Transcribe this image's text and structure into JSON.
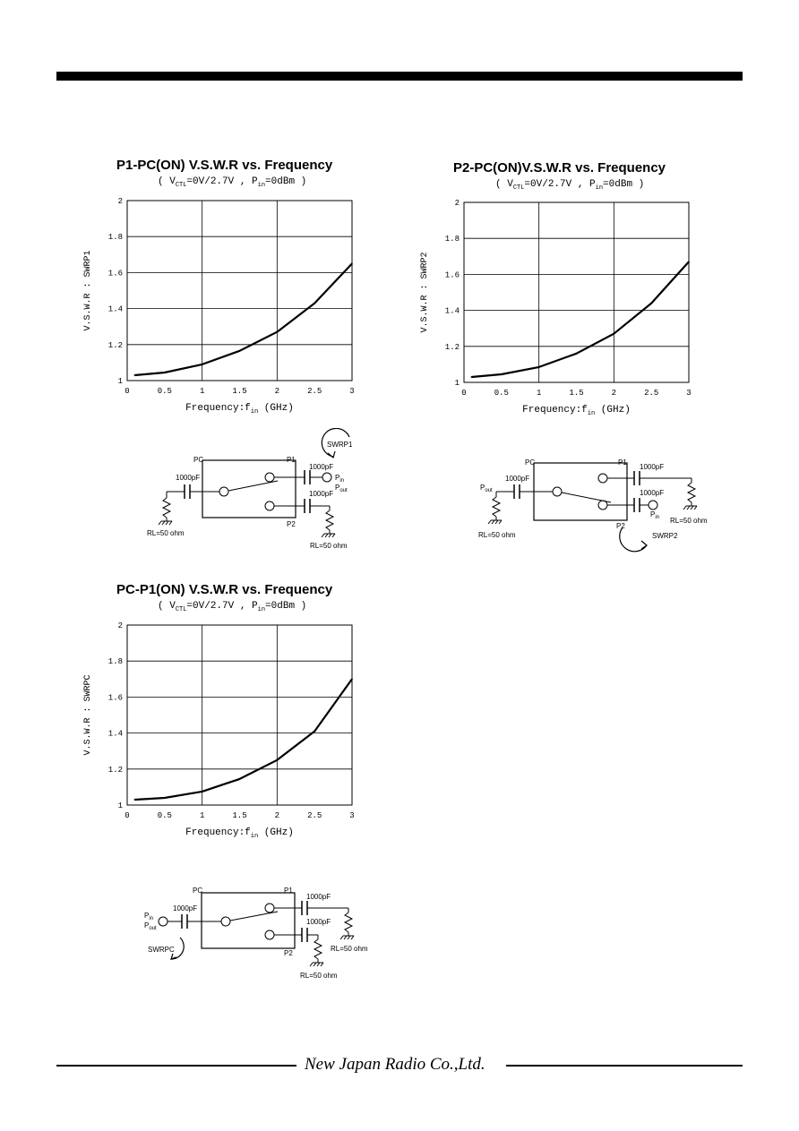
{
  "chart_data": [
    {
      "type": "line",
      "title": "P1-PC(ON) V.S.W.R vs. Frequency",
      "subtitle": "( V CTL=0V/2.7V , P in=0dBm )",
      "subtitle_parts": {
        "open": "( V",
        "sub1": "CTL",
        "mid": "=0V/2.7V , P",
        "sub2": "in",
        "close": "=0dBm )"
      },
      "xlabel": "Frequency:f",
      "xlabel_sub": "in",
      "xlabel_unit": " (GHz)",
      "ylabel": "V.S.W.R : SWRP1",
      "xlim": [
        0,
        3
      ],
      "ylim": [
        1,
        2
      ],
      "grid": true,
      "xticks": [
        "0",
        "0.5",
        "1",
        "1.5",
        "2",
        "2.5",
        "3"
      ],
      "yticks": [
        "1",
        "1.2",
        "1.4",
        "1.6",
        "1.8",
        "2"
      ],
      "x": [
        0.1,
        0.5,
        1.0,
        1.5,
        2.0,
        2.5,
        3.0
      ],
      "y": [
        1.03,
        1.045,
        1.09,
        1.165,
        1.27,
        1.43,
        1.65
      ]
    },
    {
      "type": "line",
      "title": "P2-PC(ON)V.S.W.R vs. Frequency",
      "subtitle_parts": {
        "open": "( V",
        "sub1": "CTL",
        "mid": "=0V/2.7V , P",
        "sub2": "in",
        "close": "=0dBm )"
      },
      "xlabel": "Frequency:f",
      "xlabel_sub": "in",
      "xlabel_unit": " (GHz)",
      "ylabel": "V.S.W.R : SWRP2",
      "xlim": [
        0,
        3
      ],
      "ylim": [
        1,
        2
      ],
      "grid": true,
      "xticks": [
        "0",
        "0.5",
        "1",
        "1.5",
        "2",
        "2.5",
        "3"
      ],
      "yticks": [
        "1",
        "1.2",
        "1.4",
        "1.6",
        "1.8",
        "2"
      ],
      "x": [
        0.1,
        0.5,
        1.0,
        1.5,
        2.0,
        2.5,
        3.0
      ],
      "y": [
        1.03,
        1.045,
        1.085,
        1.16,
        1.27,
        1.44,
        1.67
      ]
    },
    {
      "type": "line",
      "title": "PC-P1(ON) V.S.W.R vs. Frequency",
      "subtitle_parts": {
        "open": "( V",
        "sub1": "CTL",
        "mid": "=0V/2.7V , P",
        "sub2": "in",
        "close": "=0dBm )"
      },
      "xlabel": "Frequency:f",
      "xlabel_sub": "in",
      "xlabel_unit": " (GHz)",
      "ylabel": "V.S.W.R : SWRPC",
      "xlim": [
        0,
        3
      ],
      "ylim": [
        1,
        2
      ],
      "grid": true,
      "xticks": [
        "0",
        "0.5",
        "1",
        "1.5",
        "2",
        "2.5",
        "3"
      ],
      "yticks": [
        "1",
        "1.2",
        "1.4",
        "1.6",
        "1.8",
        "2"
      ],
      "x": [
        0.1,
        0.5,
        1.0,
        1.5,
        2.0,
        2.5,
        3.0
      ],
      "y": [
        1.03,
        1.04,
        1.075,
        1.145,
        1.25,
        1.41,
        1.7
      ]
    }
  ],
  "circuits": {
    "c1": {
      "pc": "PC",
      "p1": "P1",
      "p2": "P2",
      "cap_in": "1000pF",
      "cap_p1": "1000pF",
      "cap_p2": "1000pF",
      "pin": "P",
      "pin_sub": "in",
      "pout": "P",
      "pout_sub": "out",
      "rl_in": "RL=50 ohm",
      "rl_p2": "RL=50 ohm",
      "swr": "SWRP1"
    },
    "c2": {
      "pc": "PC",
      "p1": "P1",
      "p2": "P2",
      "cap_in": "1000pF",
      "cap_p1": "1000pF",
      "cap_p2": "1000pF",
      "pout": "P",
      "pout_sub": "out",
      "pin": "P",
      "pin_sub": "in",
      "rl_in": "RL=50 ohm",
      "rl_p1": "RL=50 ohm",
      "swr": "SWRP2"
    },
    "c3": {
      "pc": "PC",
      "p1": "P1",
      "p2": "P2",
      "cap_in": "1000pF",
      "cap_p1": "1000pF",
      "cap_p2": "1000pF",
      "pin": "P",
      "pin_sub": "in",
      "pout": "P",
      "pout_sub": "out",
      "rl_p1": "RL=50 ohm",
      "rl_p2": "RL=50 ohm",
      "swr": "SWRPC"
    }
  },
  "footer": {
    "company": "New Japan Radio Co.,Ltd."
  }
}
